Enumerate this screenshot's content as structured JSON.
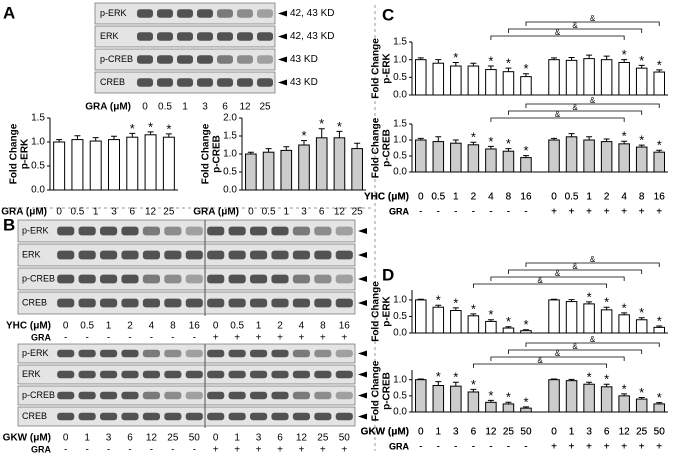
{
  "panel_labels": [
    "A",
    "B",
    "C",
    "D"
  ],
  "blots": [
    {
      "rows": [
        "p-ERK",
        "ERK",
        "p-CREB",
        "CREB"
      ],
      "sizes": [
        "42, 43 KD",
        "42, 43 KD",
        "43 KD",
        "43 KD"
      ],
      "lane_title": "GRA (μM)",
      "lanes": [
        "0",
        "0.5",
        "1",
        "3",
        "6",
        "12",
        "25"
      ]
    },
    {
      "rows": [
        "p-ERK",
        "ERK",
        "p-CREB",
        "CREB"
      ],
      "lane_title": "YHC (μM)",
      "lanes": [
        "0",
        "0.5",
        "1",
        "2",
        "4",
        "8",
        "16",
        "0",
        "0.5",
        "1",
        "2",
        "4",
        "8",
        "16"
      ],
      "secondary_label": "GRA",
      "secondary": [
        "-",
        "-",
        "-",
        "-",
        "-",
        "-",
        "-",
        "+",
        "+",
        "+",
        "+",
        "+",
        "+",
        "+"
      ]
    },
    {
      "rows": [
        "p-ERK",
        "ERK",
        "p-CREB",
        "CREB"
      ],
      "lane_title": "GKW (μM)",
      "lanes": [
        "0",
        "1",
        "3",
        "6",
        "12",
        "25",
        "50",
        "0",
        "1",
        "3",
        "6",
        "12",
        "25",
        "50"
      ],
      "secondary_label": "GRA",
      "secondary": [
        "-",
        "-",
        "-",
        "-",
        "-",
        "-",
        "-",
        "+",
        "+",
        "+",
        "+",
        "+",
        "+",
        "+"
      ]
    }
  ],
  "chart_data": [
    {
      "type": "bar",
      "ylabel": [
        "Fold Change",
        "p-ERK"
      ],
      "xlabel": "GRA (μM)",
      "categories": [
        "0",
        "0.5",
        "1",
        "3",
        "6",
        "12",
        "25"
      ],
      "values": [
        1.0,
        1.05,
        1.02,
        1.05,
        1.1,
        1.15,
        1.1
      ],
      "errors": [
        0.05,
        0.08,
        0.07,
        0.07,
        0.08,
        0.06,
        0.07
      ],
      "markers": [
        null,
        null,
        null,
        null,
        "*",
        "*",
        "*"
      ],
      "color": "#ffffff",
      "ylim": [
        0,
        1.5
      ],
      "yticks": [
        {
          "value": 0,
          "label": "0.0"
        },
        {
          "value": 0.5,
          "label": "0.5"
        },
        {
          "value": 1,
          "label": "1.0"
        },
        {
          "value": 1.5,
          "label": "1.5"
        }
      ]
    },
    {
      "type": "bar",
      "ylabel": [
        "Fold Change",
        "p-CREB"
      ],
      "xlabel": "GRA (μM)",
      "categories": [
        "0",
        "0.5",
        "1",
        "3",
        "6",
        "12",
        "25"
      ],
      "values": [
        1.0,
        1.05,
        1.1,
        1.25,
        1.45,
        1.45,
        1.15
      ],
      "errors": [
        0.05,
        0.1,
        0.1,
        0.12,
        0.25,
        0.18,
        0.15
      ],
      "markers": [
        null,
        null,
        null,
        "*",
        "*",
        "*",
        null
      ],
      "color": "#cccccc",
      "ylim": [
        0,
        2
      ],
      "yticks": [
        {
          "value": 0,
          "label": "0.0"
        },
        {
          "value": 0.5,
          "label": "0.5"
        },
        {
          "value": 1,
          "label": "1.0"
        },
        {
          "value": 1.5,
          "label": "1.5"
        },
        {
          "value": 2,
          "label": "2.0"
        }
      ]
    },
    {
      "type": "bar",
      "ylabel": [
        "Fold Change",
        "p-ERK"
      ],
      "xlabel": "YHC (μM)",
      "categories": [
        "0",
        "0.5",
        "1",
        "2",
        "4",
        "8",
        "16",
        "0",
        "0.5",
        "1",
        "2",
        "4",
        "8",
        "16"
      ],
      "secondary_label": "GRA",
      "secondary": [
        "-",
        "-",
        "-",
        "-",
        "-",
        "-",
        "-",
        "+",
        "+",
        "+",
        "+",
        "+",
        "+",
        "+"
      ],
      "values": [
        1.0,
        0.9,
        0.82,
        0.82,
        0.72,
        0.66,
        0.52,
        1.0,
        0.98,
        1.03,
        1.0,
        0.92,
        0.76,
        0.65
      ],
      "errors": [
        0.05,
        0.1,
        0.1,
        0.08,
        0.1,
        0.1,
        0.08,
        0.05,
        0.08,
        0.1,
        0.1,
        0.08,
        0.08,
        0.06
      ],
      "markers": [
        null,
        null,
        "*",
        null,
        "*",
        "*",
        "*",
        null,
        null,
        null,
        null,
        "*",
        "*",
        "*"
      ],
      "comparisons": [
        {
          "from": 4,
          "to": 11,
          "label": "&"
        },
        {
          "from": 5,
          "to": 12,
          "label": "&"
        },
        {
          "from": 6,
          "to": 13,
          "label": "&"
        }
      ],
      "color": "#ffffff",
      "ylim": [
        0,
        1.5
      ],
      "yticks": [
        {
          "value": 0,
          "label": "0.0"
        },
        {
          "value": 0.5,
          "label": "0.5"
        },
        {
          "value": 1,
          "label": "1.0"
        },
        {
          "value": 1.5,
          "label": "1.5"
        }
      ]
    },
    {
      "type": "bar",
      "ylabel": [
        "Fold Change",
        "p-CREB"
      ],
      "xlabel": "YHC (μM)",
      "categories": [
        "0",
        "0.5",
        "1",
        "2",
        "4",
        "8",
        "16",
        "0",
        "0.5",
        "1",
        "2",
        "4",
        "8",
        "16"
      ],
      "secondary_label": "GRA",
      "secondary": [
        "-",
        "-",
        "-",
        "-",
        "-",
        "-",
        "-",
        "+",
        "+",
        "+",
        "+",
        "+",
        "+",
        "+"
      ],
      "values": [
        1.0,
        0.95,
        0.9,
        0.85,
        0.72,
        0.65,
        0.45,
        1.0,
        1.1,
        1.0,
        0.95,
        0.88,
        0.78,
        0.62
      ],
      "errors": [
        0.05,
        0.15,
        0.1,
        0.08,
        0.08,
        0.08,
        0.06,
        0.05,
        0.1,
        0.1,
        0.08,
        0.08,
        0.06,
        0.06
      ],
      "markers": [
        null,
        null,
        null,
        "*",
        "*",
        "*",
        "*",
        null,
        null,
        null,
        null,
        "*",
        "*",
        "*"
      ],
      "comparisons": [
        {
          "from": 4,
          "to": 11,
          "label": "&"
        },
        {
          "from": 5,
          "to": 12,
          "label": "&"
        },
        {
          "from": 6,
          "to": 13,
          "label": "&"
        }
      ],
      "color": "#cccccc",
      "ylim": [
        0,
        1.5
      ],
      "yticks": [
        {
          "value": 0,
          "label": "0.0"
        },
        {
          "value": 0.5,
          "label": "0.5"
        },
        {
          "value": 1,
          "label": "1.0"
        },
        {
          "value": 1.5,
          "label": "1.5"
        }
      ]
    },
    {
      "type": "bar",
      "ylabel": [
        "Fold Change",
        "p-ERK"
      ],
      "xlabel": "GKW (μM)",
      "categories": [
        "0",
        "1",
        "3",
        "6",
        "12",
        "25",
        "50",
        "0",
        "1",
        "3",
        "6",
        "12",
        "25",
        "50"
      ],
      "secondary_label": "GRA",
      "secondary": [
        "-",
        "-",
        "-",
        "-",
        "-",
        "-",
        "-",
        "+",
        "+",
        "+",
        "+",
        "+",
        "+",
        "+"
      ],
      "values": [
        1.0,
        0.78,
        0.68,
        0.52,
        0.35,
        0.15,
        0.07,
        1.0,
        0.95,
        0.88,
        0.7,
        0.55,
        0.4,
        0.17
      ],
      "errors": [
        0.02,
        0.06,
        0.08,
        0.06,
        0.05,
        0.04,
        0.03,
        0.02,
        0.06,
        0.06,
        0.08,
        0.06,
        0.06,
        0.04
      ],
      "markers": [
        null,
        "*",
        "*",
        "*",
        "*",
        "*",
        "*",
        null,
        null,
        "*",
        "*",
        "*",
        "*",
        "*"
      ],
      "comparisons": [
        {
          "from": 3,
          "to": 10,
          "label": "&"
        },
        {
          "from": 4,
          "to": 11,
          "label": "&"
        },
        {
          "from": 5,
          "to": 12,
          "label": "&"
        },
        {
          "from": 6,
          "to": 13,
          "label": "&"
        }
      ],
      "color": "#ffffff",
      "ylim": [
        0,
        1.3
      ],
      "yticks": [
        {
          "value": 0,
          "label": "0.0"
        },
        {
          "value": 0.5,
          "label": "0.5"
        },
        {
          "value": 1,
          "label": "1.0"
        }
      ]
    },
    {
      "type": "bar",
      "ylabel": [
        "Fold Change",
        "p-CREB"
      ],
      "xlabel": "GKW (μM)",
      "categories": [
        "0",
        "1",
        "3",
        "6",
        "12",
        "25",
        "50",
        "0",
        "1",
        "3",
        "6",
        "12",
        "25",
        "50"
      ],
      "secondary_label": "GRA",
      "secondary": [
        "-",
        "-",
        "-",
        "-",
        "-",
        "-",
        "-",
        "+",
        "+",
        "+",
        "+",
        "+",
        "+",
        "+"
      ],
      "values": [
        1.0,
        0.82,
        0.8,
        0.62,
        0.3,
        0.25,
        0.12,
        1.0,
        0.97,
        0.86,
        0.78,
        0.5,
        0.4,
        0.25
      ],
      "errors": [
        0.02,
        0.12,
        0.12,
        0.08,
        0.06,
        0.05,
        0.04,
        0.02,
        0.04,
        0.06,
        0.08,
        0.06,
        0.05,
        0.04
      ],
      "markers": [
        null,
        "*",
        "*",
        "*",
        "*",
        "*",
        "*",
        null,
        null,
        "*",
        "*",
        "*",
        "*",
        "*"
      ],
      "comparisons": [
        {
          "from": 3,
          "to": 10,
          "label": "&"
        },
        {
          "from": 4,
          "to": 11,
          "label": "&"
        },
        {
          "from": 5,
          "to": 12,
          "label": "&"
        },
        {
          "from": 6,
          "to": 13,
          "label": "&"
        }
      ],
      "color": "#cccccc",
      "ylim": [
        0,
        1.3
      ],
      "yticks": [
        {
          "value": 0,
          "label": "0.0"
        },
        {
          "value": 0.5,
          "label": "0.5"
        },
        {
          "value": 1,
          "label": "1.0"
        }
      ]
    }
  ]
}
